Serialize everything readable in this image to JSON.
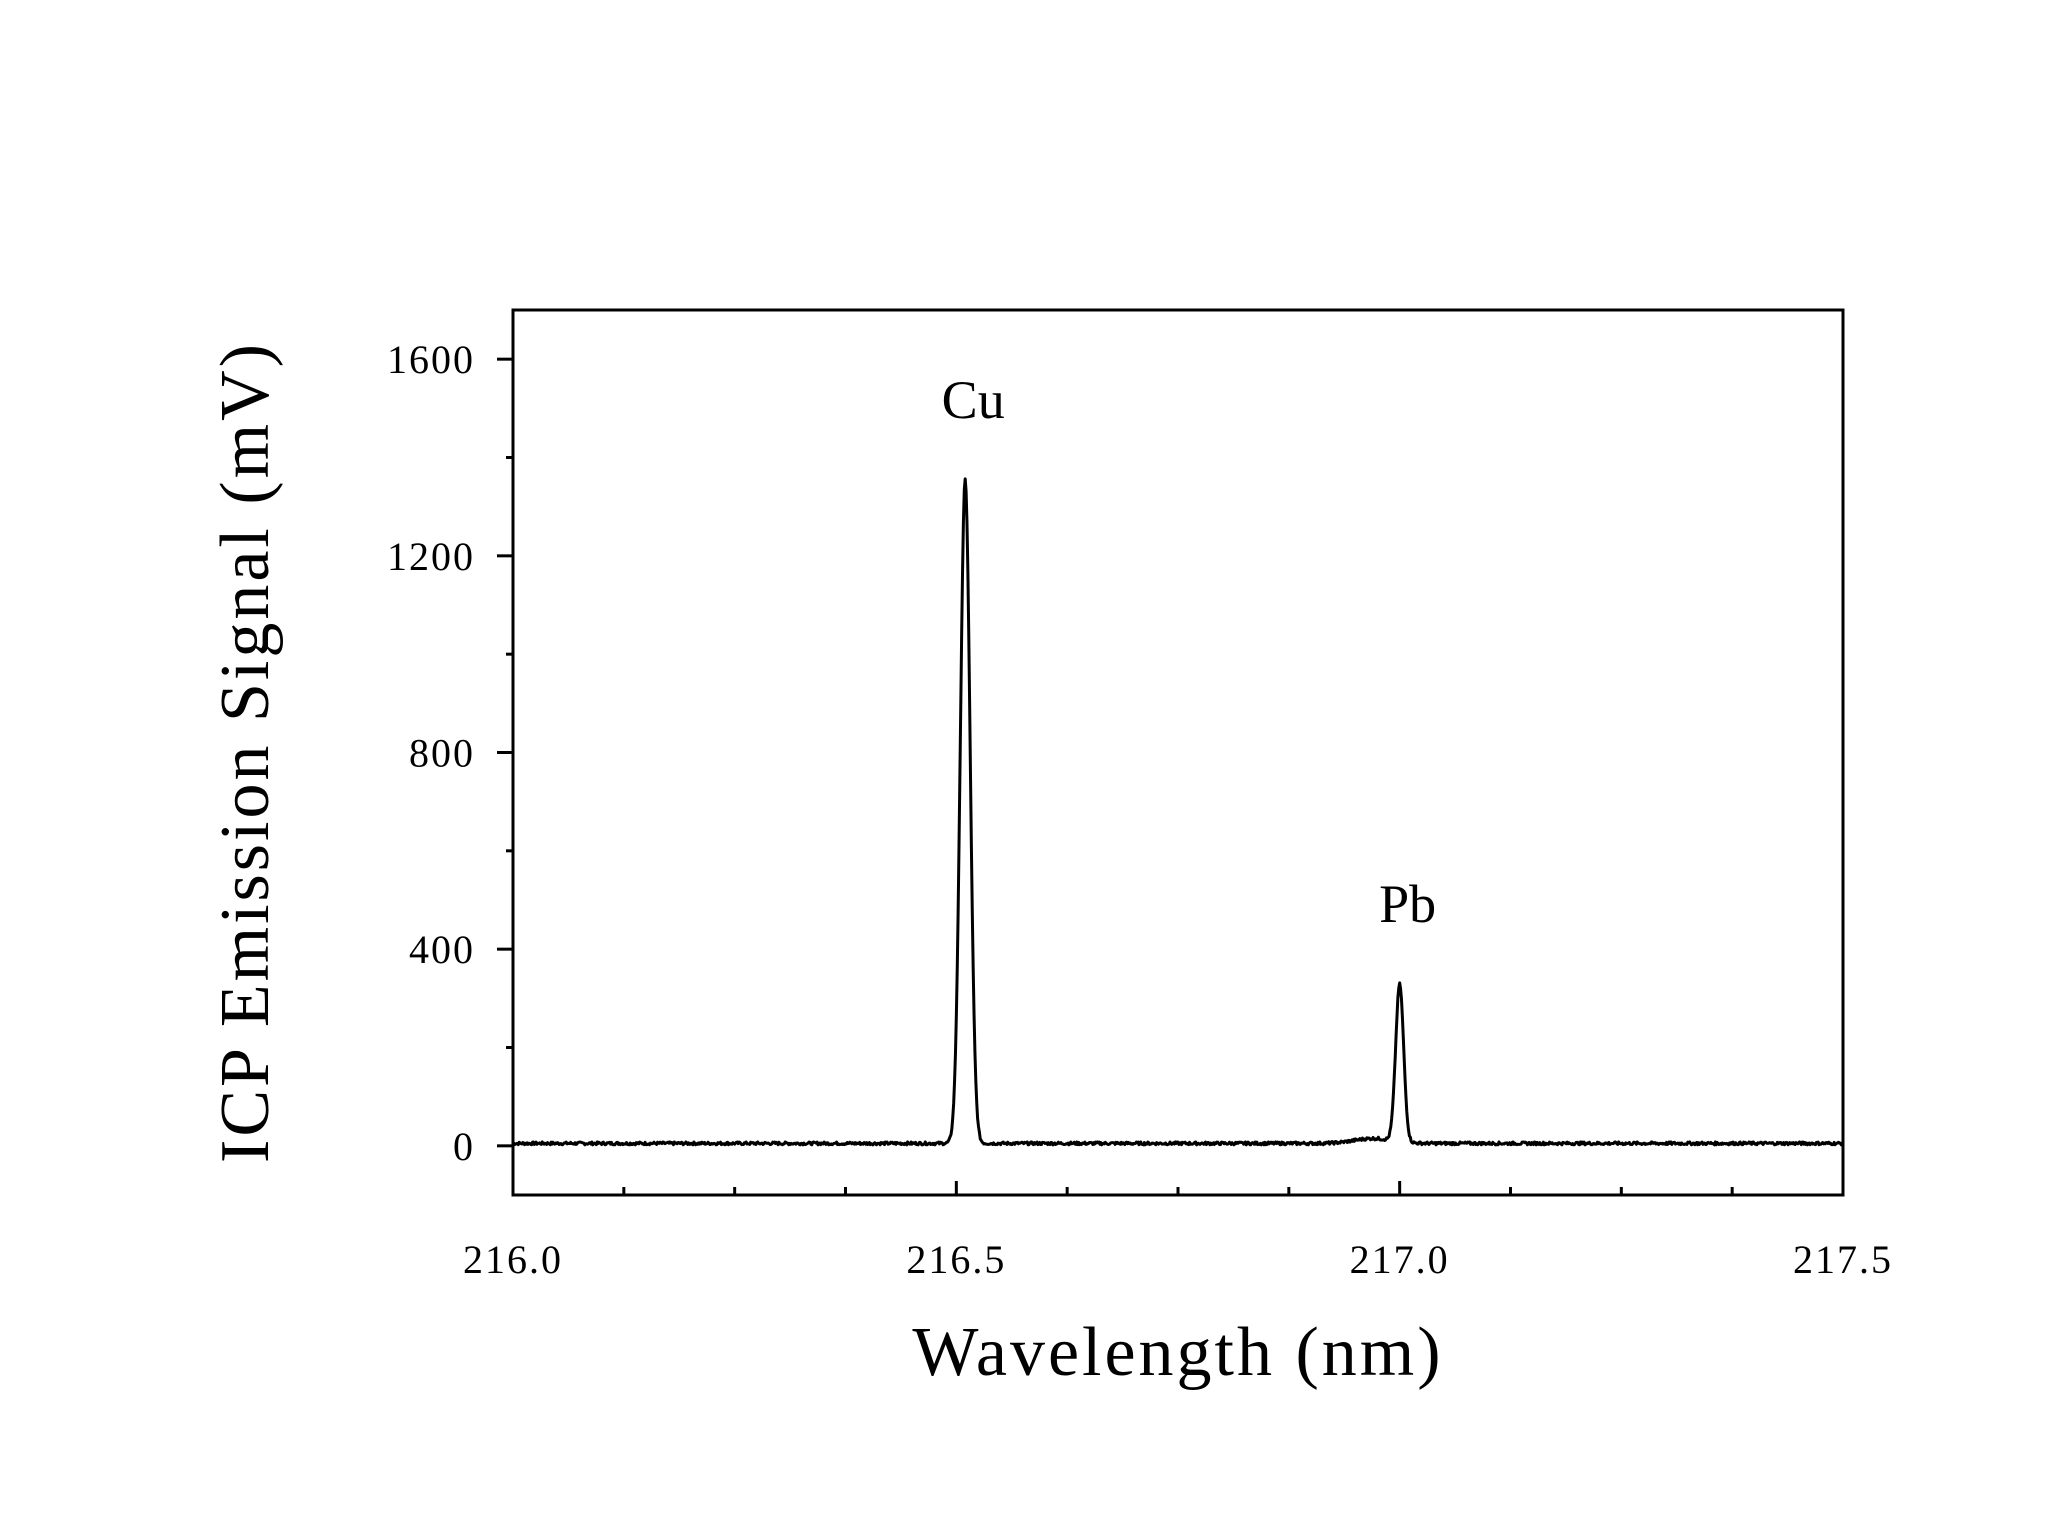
{
  "chart_data": {
    "type": "line",
    "xlabel": "Wavelength (nm)",
    "ylabel": "ICP Emission Signal (mV)",
    "xlim": [
      216.0,
      217.5
    ],
    "ylim": [
      -100,
      1700
    ],
    "x_ticks": [
      216.0,
      216.5,
      217.0,
      217.5
    ],
    "x_tick_labels": [
      "216.0",
      "216.5",
      "217.0",
      "217.5"
    ],
    "x_minor_step": 0.125,
    "y_ticks": [
      0,
      400,
      800,
      1200,
      1600
    ],
    "y_tick_labels": [
      "0",
      "400",
      "800",
      "1200",
      "1600"
    ],
    "y_minor_step": 200,
    "grid": false,
    "line_color": "#000000",
    "series": [
      {
        "peaks": [
          {
            "center": 216.51,
            "height": 1350,
            "width": 0.0055
          },
          {
            "center": 217.0,
            "height": 320,
            "width": 0.0045
          }
        ],
        "baseline": 5,
        "x": [
          216.0,
          216.1,
          216.2,
          216.3,
          216.4,
          216.45,
          216.48,
          216.495,
          216.5,
          216.505,
          216.51,
          216.515,
          216.52,
          216.525,
          216.54,
          216.6,
          216.7,
          216.8,
          216.9,
          216.95,
          216.98,
          216.99,
          216.995,
          217.0,
          217.005,
          217.01,
          217.02,
          217.05,
          217.1,
          217.2,
          217.3,
          217.4,
          217.5
        ],
        "y": [
          5,
          5,
          6,
          6,
          7,
          8,
          12,
          60,
          400,
          1100,
          1350,
          1050,
          380,
          60,
          10,
          7,
          7,
          8,
          14,
          18,
          25,
          80,
          220,
          320,
          240,
          90,
          15,
          6,
          6,
          5,
          5,
          5,
          5
        ]
      }
    ],
    "annotations": [
      {
        "text": "Cu",
        "x": 216.51,
        "y": 1480
      },
      {
        "text": "Pb",
        "x": 217.0,
        "y": 455
      }
    ]
  }
}
